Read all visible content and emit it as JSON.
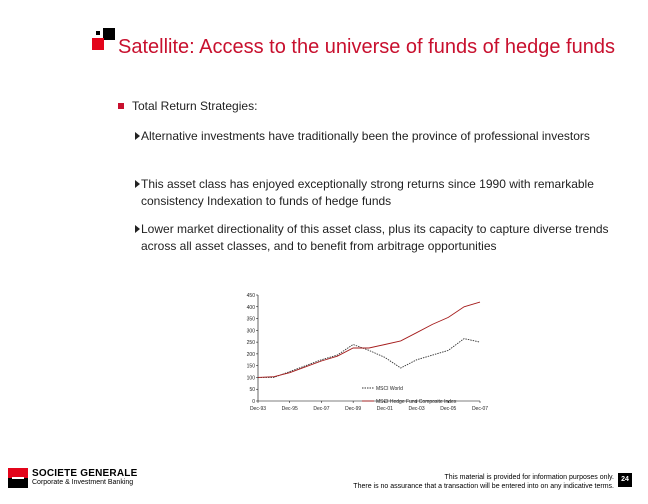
{
  "slide": {
    "title": "Satellite: Access to the universe of funds of hedge funds",
    "bullet": "Total Return Strategies:",
    "sub_bullets": [
      "Alternative investments have traditionally been the province of professional investors",
      "This asset class has enjoyed exceptionally strong returns since 1990 with remarkable consistency Indexation to funds of hedge funds",
      "Lower market directionality of this asset class, plus its capacity to capture diverse trends across all asset classes, and to benefit from arbitrage opportunities"
    ]
  },
  "footer": {
    "brand": "SOCIETE GENERALE",
    "sub_brand": "Corporate & Investment Banking",
    "disclaimer_line1": "This material is provided for information purposes only.",
    "disclaimer_line2": "There is no assurance that a transaction will be entered into on any indicative terms.",
    "page_number": "24"
  },
  "colors": {
    "accent": "#c8102e",
    "series_world": "#333333",
    "series_hf": "#a51c1c"
  },
  "chart_data": {
    "type": "line",
    "title": "",
    "xlabel": "",
    "ylabel": "",
    "ylim": [
      0,
      450
    ],
    "yticks": [
      "0",
      "50",
      "100",
      "150",
      "200",
      "250",
      "300",
      "350",
      "400",
      "450"
    ],
    "xticks": [
      "Dec-93",
      "Dec-95",
      "Dec-97",
      "Dec-99",
      "Dec-01",
      "Dec-03",
      "Dec-05",
      "Dec-07"
    ],
    "legend_position": "inside-bottom-right",
    "x": [
      "Dec-93",
      "Dec-94",
      "Dec-95",
      "Dec-96",
      "Dec-97",
      "Dec-98",
      "Dec-99",
      "Dec-00",
      "Dec-01",
      "Dec-02",
      "Dec-03",
      "Dec-04",
      "Dec-05",
      "Dec-06",
      "Dec-07"
    ],
    "series": [
      {
        "name": "MSCI World",
        "values": [
          100,
          100,
          125,
          150,
          175,
          195,
          240,
          215,
          185,
          140,
          175,
          195,
          215,
          265,
          250
        ]
      },
      {
        "name": "MSCI Hedge Fund Composite Index",
        "values": [
          100,
          103,
          120,
          145,
          170,
          190,
          225,
          225,
          240,
          255,
          290,
          325,
          355,
          400,
          420
        ]
      }
    ]
  }
}
